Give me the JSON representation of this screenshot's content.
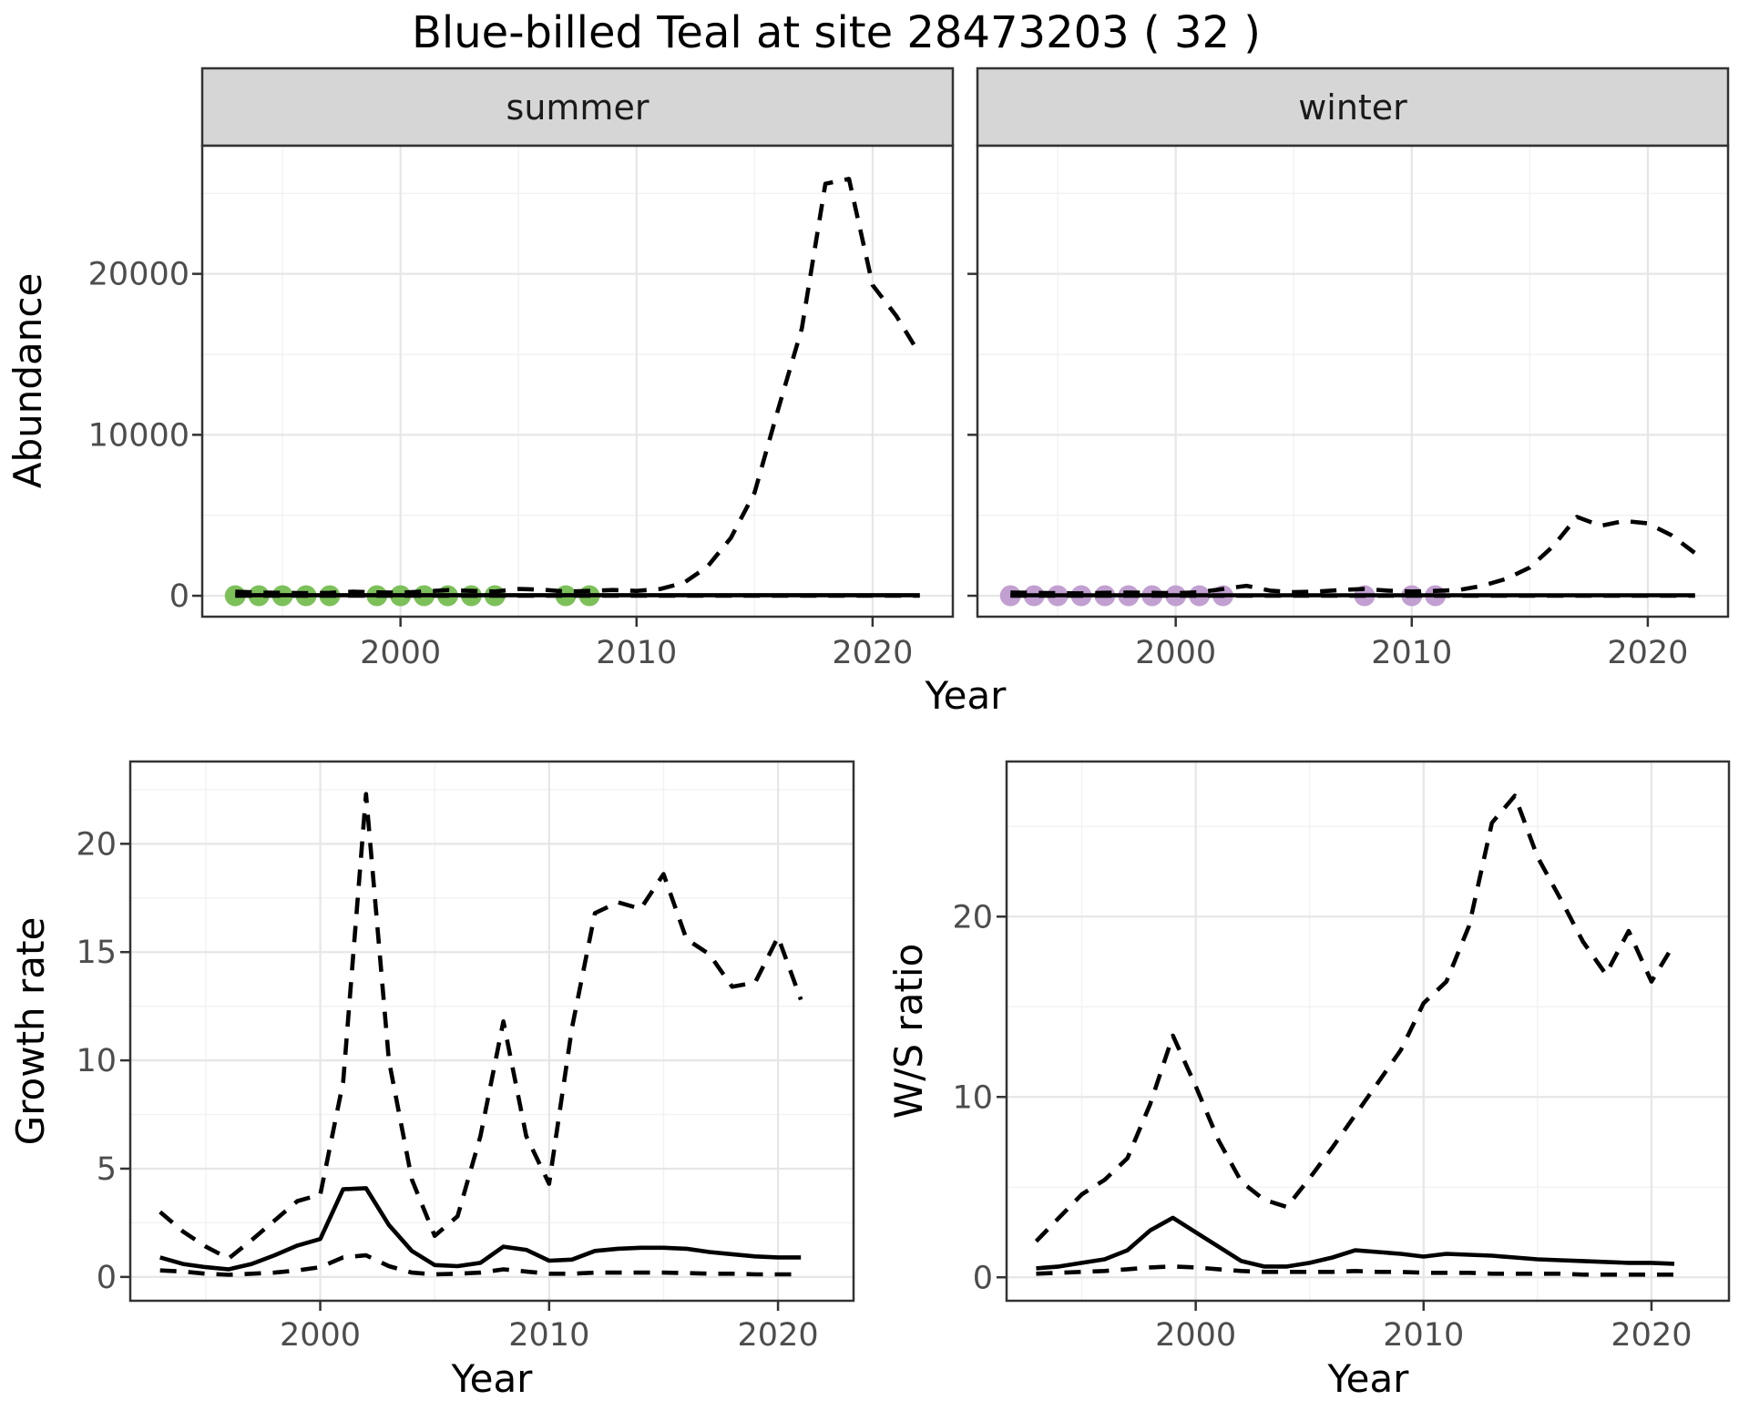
{
  "title": "Blue-billed Teal at site 28473203 ( 32 )",
  "colors": {
    "summer_points": "#7cc05a",
    "winter_points": "#c19fd1",
    "line": "#000000",
    "strip_fill": "#d6d6d6",
    "panel_border": "#333333",
    "grid_major": "#e6e6e6",
    "grid_minor": "#f2f2f2",
    "tick_text": "#4d4d4d"
  },
  "chart_data": [
    {
      "id": "abundance-summer",
      "type": "line",
      "facet_label": "summer",
      "xlabel": "Year",
      "ylabel": "Abundance",
      "xlim": [
        1991.6,
        2023.4
      ],
      "ylim": [
        -1300,
        27960
      ],
      "xticks": [
        2000,
        2010,
        2020
      ],
      "yticks": [
        0,
        10000,
        20000
      ],
      "xminor": [
        1995,
        2005,
        2015
      ],
      "yminor": [
        5000,
        15000,
        25000
      ],
      "show_ytick_labels": true,
      "x": [
        1993,
        1994,
        1995,
        1996,
        1997,
        1998,
        1999,
        2000,
        2001,
        2002,
        2003,
        2004,
        2005,
        2006,
        2007,
        2008,
        2009,
        2010,
        2011,
        2012,
        2013,
        2014,
        2015,
        2016,
        2017,
        2018,
        2019,
        2020,
        2021,
        2022
      ],
      "series": [
        {
          "name": "lower_ci",
          "style": "dashed",
          "values": [
            5,
            5,
            5,
            5,
            5,
            5,
            5,
            5,
            5,
            5,
            5,
            5,
            5,
            5,
            5,
            5,
            5,
            5,
            5,
            5,
            5,
            5,
            5,
            5,
            5,
            5,
            5,
            5,
            5,
            5
          ]
        },
        {
          "name": "median",
          "style": "solid",
          "values": [
            35,
            35,
            35,
            35,
            35,
            35,
            35,
            35,
            35,
            35,
            35,
            35,
            35,
            35,
            35,
            35,
            35,
            35,
            35,
            35,
            35,
            35,
            35,
            35,
            35,
            35,
            35,
            35,
            35,
            35
          ]
        },
        {
          "name": "upper_ci",
          "style": "dashed",
          "values": [
            250,
            200,
            180,
            160,
            180,
            250,
            210,
            190,
            260,
            350,
            300,
            260,
            420,
            380,
            260,
            300,
            360,
            300,
            420,
            800,
            1800,
            3600,
            6400,
            11600,
            16600,
            25600,
            25900,
            19300,
            17400,
            15000
          ]
        }
      ],
      "points": {
        "name": "observed-counts",
        "color_key": "summer_points",
        "years": [
          1993,
          1994,
          1995,
          1996,
          1997,
          1999,
          2000,
          2001,
          2002,
          2003,
          2004,
          2007,
          2008
        ],
        "values": [
          0,
          0,
          0,
          0,
          0,
          0,
          0,
          0,
          0,
          0,
          0,
          0,
          0
        ]
      }
    },
    {
      "id": "abundance-winter",
      "type": "line",
      "facet_label": "winter",
      "xlabel": "Year",
      "ylabel": "Abundance",
      "xlim": [
        1991.6,
        2023.4
      ],
      "ylim": [
        -1300,
        27960
      ],
      "xticks": [
        2000,
        2010,
        2020
      ],
      "yticks": [
        0,
        10000,
        20000
      ],
      "xminor": [
        1995,
        2005,
        2015
      ],
      "yminor": [
        5000,
        15000,
        25000
      ],
      "show_ytick_labels": false,
      "x": [
        1993,
        1994,
        1995,
        1996,
        1997,
        1998,
        1999,
        2000,
        2001,
        2002,
        2003,
        2004,
        2005,
        2006,
        2007,
        2008,
        2009,
        2010,
        2011,
        2012,
        2013,
        2014,
        2015,
        2016,
        2017,
        2018,
        2019,
        2020,
        2021,
        2022
      ],
      "series": [
        {
          "name": "lower_ci",
          "style": "dashed",
          "values": [
            5,
            5,
            5,
            5,
            5,
            5,
            5,
            5,
            5,
            5,
            5,
            5,
            5,
            5,
            5,
            5,
            5,
            5,
            5,
            5,
            5,
            5,
            5,
            5,
            5,
            5,
            5,
            5,
            5,
            5
          ]
        },
        {
          "name": "median",
          "style": "solid",
          "values": [
            30,
            30,
            30,
            30,
            30,
            30,
            30,
            30,
            30,
            30,
            30,
            30,
            30,
            30,
            30,
            30,
            30,
            30,
            30,
            30,
            30,
            30,
            30,
            30,
            30,
            30,
            30,
            30,
            30,
            30
          ]
        },
        {
          "name": "upper_ci",
          "style": "dashed",
          "values": [
            200,
            180,
            160,
            150,
            180,
            200,
            180,
            160,
            220,
            420,
            620,
            320,
            220,
            260,
            360,
            420,
            320,
            260,
            300,
            360,
            620,
            1050,
            1750,
            3100,
            4900,
            4350,
            4650,
            4500,
            3760,
            2650
          ]
        }
      ],
      "points": {
        "name": "observed-counts",
        "color_key": "winter_points",
        "years": [
          1993,
          1994,
          1995,
          1996,
          1997,
          1998,
          1999,
          2000,
          2001,
          2002,
          2008,
          2010,
          2011
        ],
        "values": [
          0,
          0,
          0,
          0,
          0,
          0,
          0,
          0,
          0,
          0,
          0,
          0,
          0
        ]
      }
    },
    {
      "id": "growth-rate",
      "type": "line",
      "facet_label": "",
      "xlabel": "Year",
      "ylabel": "Growth rate",
      "xlim": [
        1991.7,
        2023.3
      ],
      "ylim": [
        -1.1,
        23.8
      ],
      "xticks": [
        2000,
        2010,
        2020
      ],
      "yticks": [
        0,
        5,
        10,
        15,
        20
      ],
      "xminor": [
        1995,
        2005,
        2015
      ],
      "yminor": [
        2.5,
        7.5,
        12.5,
        17.5,
        22.5
      ],
      "show_ytick_labels": true,
      "x": [
        1993,
        1994,
        1995,
        1996,
        1997,
        1998,
        1999,
        2000,
        2001,
        2002,
        2003,
        2004,
        2005,
        2006,
        2007,
        2008,
        2009,
        2010,
        2011,
        2012,
        2013,
        2014,
        2015,
        2016,
        2017,
        2018,
        2019,
        2020,
        2021
      ],
      "series": [
        {
          "name": "lower_ci",
          "style": "dashed",
          "values": [
            0.3,
            0.25,
            0.15,
            0.1,
            0.15,
            0.2,
            0.3,
            0.45,
            0.9,
            1.0,
            0.5,
            0.2,
            0.12,
            0.15,
            0.2,
            0.35,
            0.25,
            0.15,
            0.15,
            0.2,
            0.2,
            0.2,
            0.2,
            0.18,
            0.15,
            0.15,
            0.12,
            0.12,
            0.12
          ]
        },
        {
          "name": "median",
          "style": "solid",
          "values": [
            0.9,
            0.6,
            0.45,
            0.35,
            0.6,
            1.0,
            1.45,
            1.75,
            4.05,
            4.1,
            2.4,
            1.2,
            0.55,
            0.5,
            0.65,
            1.4,
            1.25,
            0.75,
            0.8,
            1.2,
            1.3,
            1.35,
            1.35,
            1.3,
            1.15,
            1.05,
            0.95,
            0.9,
            0.9
          ]
        },
        {
          "name": "upper_ci",
          "style": "dashed",
          "values": [
            3.0,
            2.1,
            1.4,
            0.85,
            1.7,
            2.6,
            3.5,
            3.8,
            9.0,
            22.3,
            10.0,
            4.5,
            1.9,
            2.8,
            6.5,
            11.8,
            6.5,
            4.3,
            11.5,
            16.8,
            17.3,
            17.0,
            18.6,
            15.6,
            14.9,
            13.4,
            13.6,
            15.7,
            12.8
          ]
        }
      ],
      "points": null
    },
    {
      "id": "ws-ratio",
      "type": "line",
      "facet_label": "",
      "xlabel": "Year",
      "ylabel": "W/S ratio",
      "xlim": [
        1991.7,
        2023.4
      ],
      "ylim": [
        -1.3,
        28.6
      ],
      "xticks": [
        2000,
        2010,
        2020
      ],
      "yticks": [
        0,
        10,
        20
      ],
      "xminor": [
        1995,
        2005,
        2015
      ],
      "yminor": [
        5,
        15,
        25
      ],
      "show_ytick_labels": true,
      "x": [
        1993,
        1994,
        1995,
        1996,
        1997,
        1998,
        1999,
        2000,
        2001,
        2002,
        2003,
        2004,
        2005,
        2006,
        2007,
        2008,
        2009,
        2010,
        2011,
        2012,
        2013,
        2014,
        2015,
        2016,
        2017,
        2018,
        2019,
        2020,
        2021
      ],
      "series": [
        {
          "name": "lower_ci",
          "style": "dashed",
          "values": [
            0.2,
            0.25,
            0.3,
            0.35,
            0.45,
            0.55,
            0.6,
            0.55,
            0.45,
            0.35,
            0.3,
            0.3,
            0.3,
            0.3,
            0.35,
            0.3,
            0.3,
            0.25,
            0.25,
            0.25,
            0.2,
            0.2,
            0.2,
            0.2,
            0.15,
            0.15,
            0.15,
            0.15,
            0.15
          ]
        },
        {
          "name": "median",
          "style": "solid",
          "values": [
            0.5,
            0.6,
            0.8,
            1.0,
            1.5,
            2.6,
            3.3,
            2.5,
            1.7,
            0.9,
            0.6,
            0.6,
            0.8,
            1.1,
            1.5,
            1.4,
            1.3,
            1.15,
            1.3,
            1.25,
            1.2,
            1.1,
            1.0,
            0.95,
            0.9,
            0.85,
            0.8,
            0.8,
            0.75
          ]
        },
        {
          "name": "upper_ci",
          "style": "dashed",
          "values": [
            2.0,
            3.3,
            4.6,
            5.4,
            6.6,
            9.6,
            13.4,
            10.6,
            7.6,
            5.3,
            4.3,
            3.9,
            5.5,
            7.2,
            9.0,
            10.8,
            12.6,
            15.2,
            16.4,
            19.5,
            25.2,
            26.7,
            23.3,
            21.0,
            18.6,
            16.8,
            19.2,
            16.4,
            18.5
          ]
        }
      ],
      "points": null
    }
  ]
}
